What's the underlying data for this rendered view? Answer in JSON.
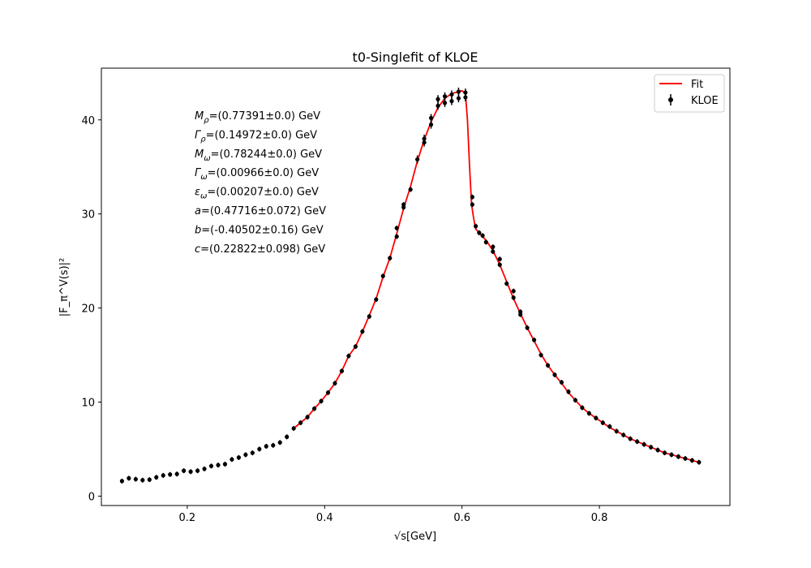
{
  "chart_data": {
    "type": "scatter",
    "title": "t0-Singlefit of KLOE",
    "xlabel": "√s[GeV]",
    "ylabel": "|F_π^V(s)|²",
    "xlim": [
      0.075,
      0.99
    ],
    "ylim": [
      -1,
      45.5
    ],
    "xticks": [
      0.2,
      0.4,
      0.6,
      0.8
    ],
    "xtick_labels": [
      "0.2",
      "0.4",
      "0.6",
      "0.8"
    ],
    "yticks": [
      0,
      10,
      20,
      30,
      40
    ],
    "ytick_labels": [
      "0",
      "10",
      "20",
      "30",
      "40"
    ],
    "grid": false,
    "legend_position": "top-right",
    "legend": [
      {
        "label": "Fit",
        "color": "#ff0000",
        "kind": "line"
      },
      {
        "label": "KLOE",
        "color": "#000000",
        "kind": "errorbar"
      }
    ],
    "annotations": [
      {
        "sym": "M",
        "sub": "ρ",
        "text": "=(0.77391±0.0) GeV"
      },
      {
        "sym": "Γ",
        "sub": "ρ",
        "text": "=(0.14972±0.0) GeV"
      },
      {
        "sym": "M",
        "sub": "ω",
        "text": "=(0.78244±0.0) GeV"
      },
      {
        "sym": "Γ",
        "sub": "ω",
        "text": "=(0.00966±0.0) GeV"
      },
      {
        "sym": "ε",
        "sub": "ω",
        "text": "=(0.00207±0.0) GeV"
      },
      {
        "sym": "a",
        "sub": "",
        "text": "=(0.47716±0.072) GeV"
      },
      {
        "sym": "b",
        "sub": "",
        "text": "=(-0.40502±0.16) GeV"
      },
      {
        "sym": "c",
        "sub": "",
        "text": "=(0.22822±0.098) GeV"
      }
    ],
    "series": [
      {
        "name": "KLOE",
        "color": "#000000",
        "points": [
          [
            0.105,
            1.6
          ],
          [
            0.115,
            1.9
          ],
          [
            0.125,
            1.8
          ],
          [
            0.135,
            1.7
          ],
          [
            0.145,
            1.75
          ],
          [
            0.155,
            2.0
          ],
          [
            0.165,
            2.2
          ],
          [
            0.175,
            2.3
          ],
          [
            0.185,
            2.35
          ],
          [
            0.195,
            2.7
          ],
          [
            0.205,
            2.6
          ],
          [
            0.215,
            2.7
          ],
          [
            0.225,
            2.9
          ],
          [
            0.235,
            3.2
          ],
          [
            0.245,
            3.3
          ],
          [
            0.255,
            3.4
          ],
          [
            0.265,
            3.9
          ],
          [
            0.275,
            4.1
          ],
          [
            0.285,
            4.4
          ],
          [
            0.295,
            4.6
          ],
          [
            0.305,
            5.0
          ],
          [
            0.315,
            5.3
          ],
          [
            0.325,
            5.4
          ],
          [
            0.335,
            5.7
          ],
          [
            0.345,
            6.3
          ],
          [
            0.355,
            7.2
          ],
          [
            0.365,
            7.8
          ],
          [
            0.375,
            8.4
          ],
          [
            0.385,
            9.3
          ],
          [
            0.395,
            10.1
          ],
          [
            0.405,
            11.0
          ],
          [
            0.415,
            12.0
          ],
          [
            0.425,
            13.3
          ],
          [
            0.435,
            14.9
          ],
          [
            0.445,
            15.9
          ],
          [
            0.455,
            17.5
          ],
          [
            0.465,
            19.1
          ],
          [
            0.475,
            20.9
          ],
          [
            0.485,
            23.4
          ],
          [
            0.495,
            25.3
          ],
          [
            0.505,
            27.6
          ],
          [
            0.505,
            28.5
          ],
          [
            0.515,
            30.7
          ],
          [
            0.515,
            31.0
          ],
          [
            0.525,
            32.6
          ],
          [
            0.535,
            35.8
          ],
          [
            0.545,
            37.6
          ],
          [
            0.545,
            38.0
          ],
          [
            0.555,
            39.5
          ],
          [
            0.555,
            40.2
          ],
          [
            0.565,
            41.5
          ],
          [
            0.565,
            42.2
          ],
          [
            0.575,
            42.5
          ],
          [
            0.575,
            41.8
          ],
          [
            0.585,
            42.7
          ],
          [
            0.585,
            42.0
          ],
          [
            0.595,
            42.3
          ],
          [
            0.595,
            43.0
          ],
          [
            0.605,
            42.9
          ],
          [
            0.605,
            42.4
          ],
          [
            0.615,
            31.8
          ],
          [
            0.615,
            31.0
          ],
          [
            0.62,
            28.7
          ],
          [
            0.625,
            28.0
          ],
          [
            0.63,
            27.7
          ],
          [
            0.635,
            27.0
          ],
          [
            0.645,
            26.5
          ],
          [
            0.645,
            26.0
          ],
          [
            0.655,
            25.2
          ],
          [
            0.655,
            24.6
          ],
          [
            0.665,
            22.6
          ],
          [
            0.675,
            21.8
          ],
          [
            0.675,
            21.1
          ],
          [
            0.685,
            19.6
          ],
          [
            0.685,
            19.3
          ],
          [
            0.695,
            17.9
          ],
          [
            0.705,
            16.6
          ],
          [
            0.715,
            15.0
          ],
          [
            0.725,
            13.9
          ],
          [
            0.735,
            12.9
          ],
          [
            0.745,
            12.1
          ],
          [
            0.755,
            11.1
          ],
          [
            0.765,
            10.2
          ],
          [
            0.775,
            9.4
          ],
          [
            0.785,
            8.8
          ],
          [
            0.795,
            8.3
          ],
          [
            0.805,
            7.8
          ],
          [
            0.815,
            7.4
          ],
          [
            0.825,
            6.9
          ],
          [
            0.835,
            6.5
          ],
          [
            0.845,
            6.1
          ],
          [
            0.855,
            5.8
          ],
          [
            0.865,
            5.5
          ],
          [
            0.875,
            5.2
          ],
          [
            0.885,
            4.9
          ],
          [
            0.895,
            4.6
          ],
          [
            0.905,
            4.4
          ],
          [
            0.915,
            4.2
          ],
          [
            0.925,
            4.0
          ],
          [
            0.935,
            3.8
          ],
          [
            0.945,
            3.6
          ]
        ]
      },
      {
        "name": "Fit",
        "color": "#ff0000",
        "points": [
          [
            0.355,
            7.2
          ],
          [
            0.365,
            7.8
          ],
          [
            0.375,
            8.4
          ],
          [
            0.385,
            9.3
          ],
          [
            0.395,
            10.1
          ],
          [
            0.405,
            11.0
          ],
          [
            0.415,
            12.0
          ],
          [
            0.425,
            13.3
          ],
          [
            0.435,
            14.9
          ],
          [
            0.445,
            15.9
          ],
          [
            0.455,
            17.5
          ],
          [
            0.465,
            19.2
          ],
          [
            0.475,
            21.0
          ],
          [
            0.485,
            23.3
          ],
          [
            0.495,
            25.3
          ],
          [
            0.505,
            27.9
          ],
          [
            0.515,
            30.6
          ],
          [
            0.525,
            32.9
          ],
          [
            0.535,
            35.6
          ],
          [
            0.545,
            37.9
          ],
          [
            0.555,
            39.8
          ],
          [
            0.565,
            41.3
          ],
          [
            0.575,
            42.3
          ],
          [
            0.585,
            42.8
          ],
          [
            0.595,
            43.0
          ],
          [
            0.6,
            43.1
          ],
          [
            0.605,
            42.8
          ],
          [
            0.608,
            40.0
          ],
          [
            0.611,
            35.0
          ],
          [
            0.614,
            31.0
          ],
          [
            0.617,
            29.5
          ],
          [
            0.62,
            28.4
          ],
          [
            0.625,
            28.0
          ],
          [
            0.635,
            27.2
          ],
          [
            0.645,
            26.1
          ],
          [
            0.655,
            24.6
          ],
          [
            0.665,
            22.8
          ],
          [
            0.675,
            21.0
          ],
          [
            0.685,
            19.4
          ],
          [
            0.695,
            17.9
          ],
          [
            0.705,
            16.5
          ],
          [
            0.715,
            15.1
          ],
          [
            0.725,
            13.9
          ],
          [
            0.735,
            12.9
          ],
          [
            0.745,
            12.0
          ],
          [
            0.755,
            11.0
          ],
          [
            0.765,
            10.2
          ],
          [
            0.775,
            9.4
          ],
          [
            0.785,
            8.8
          ],
          [
            0.795,
            8.3
          ],
          [
            0.805,
            7.8
          ],
          [
            0.815,
            7.3
          ],
          [
            0.825,
            6.9
          ],
          [
            0.835,
            6.5
          ],
          [
            0.845,
            6.1
          ],
          [
            0.855,
            5.8
          ],
          [
            0.865,
            5.5
          ],
          [
            0.875,
            5.2
          ],
          [
            0.885,
            4.9
          ],
          [
            0.895,
            4.6
          ],
          [
            0.905,
            4.4
          ],
          [
            0.915,
            4.2
          ],
          [
            0.925,
            4.0
          ],
          [
            0.935,
            3.8
          ],
          [
            0.945,
            3.6
          ]
        ]
      }
    ]
  }
}
